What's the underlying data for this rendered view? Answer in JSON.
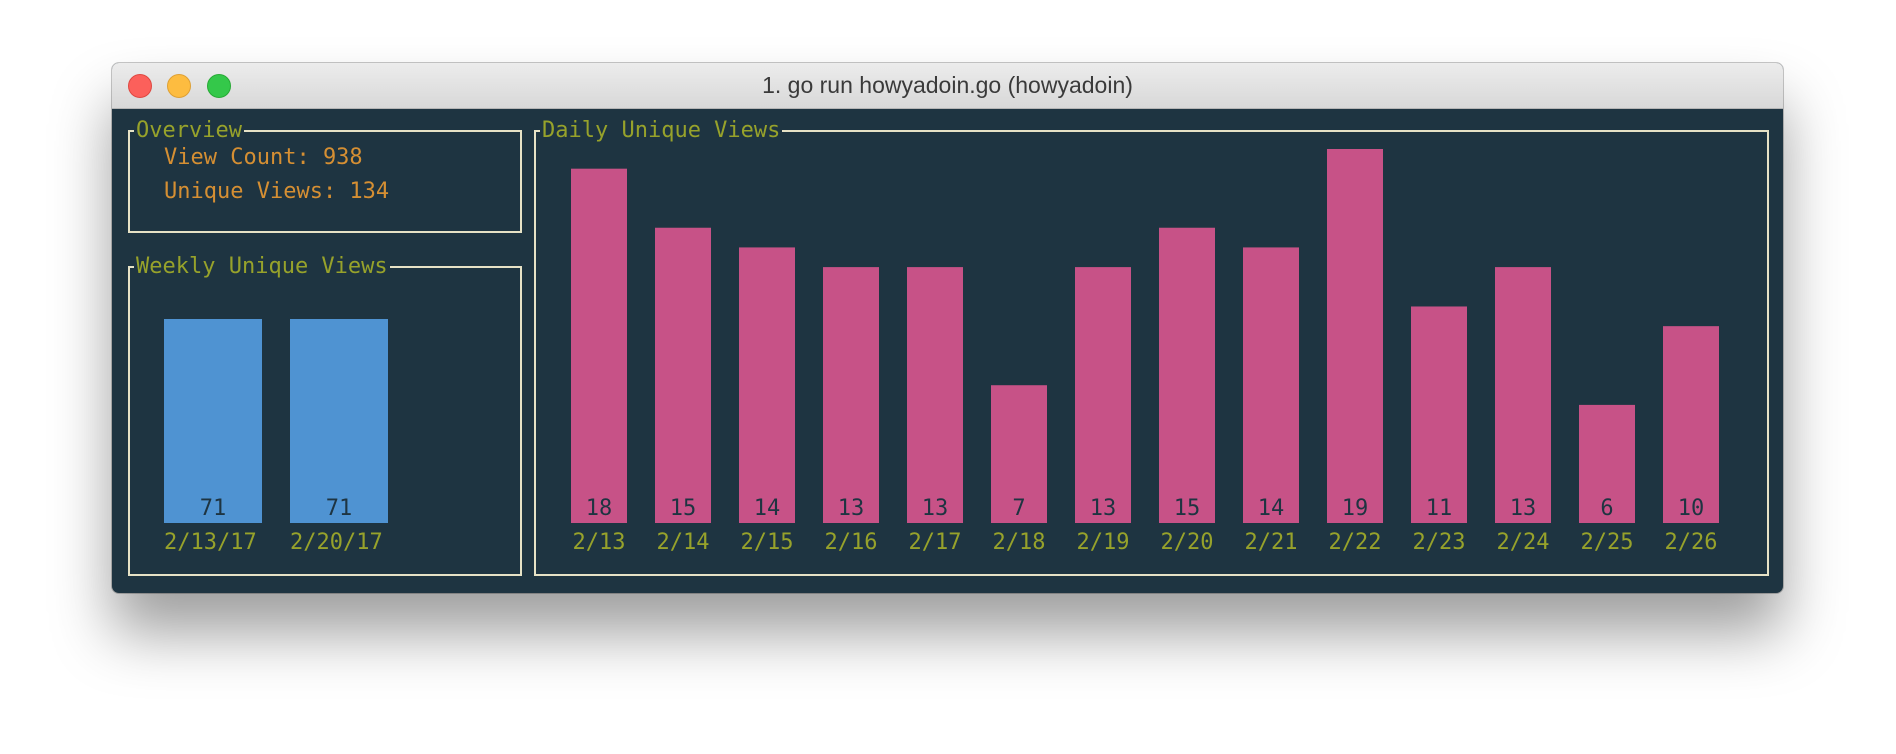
{
  "window": {
    "title": "1. go run howyadoin.go (howyadoin)"
  },
  "overview": {
    "title": "Overview",
    "view_count": "View Count: 938",
    "unique_views": "Unique Views: 134"
  },
  "colors": {
    "background": "#1e3441",
    "border": "#e6e2c6",
    "panel_title": "#97a22b",
    "overview_text": "#d58f33",
    "weekly_bar": "#4f93d2",
    "daily_bar": "#c75287",
    "bar_value_text": "#1e3441",
    "tick_label": "#97a22b"
  },
  "chart_data": [
    {
      "type": "bar",
      "title": "Weekly Unique Views",
      "categories": [
        "2/13/17",
        "2/20/17"
      ],
      "values": [
        71,
        71
      ]
    },
    {
      "type": "bar",
      "title": "Daily Unique Views",
      "categories": [
        "2/13",
        "2/14",
        "2/15",
        "2/16",
        "2/17",
        "2/18",
        "2/19",
        "2/20",
        "2/21",
        "2/22",
        "2/23",
        "2/24",
        "2/25",
        "2/26"
      ],
      "values": [
        18,
        15,
        14,
        13,
        13,
        7,
        13,
        15,
        14,
        19,
        11,
        13,
        6,
        10
      ]
    }
  ]
}
